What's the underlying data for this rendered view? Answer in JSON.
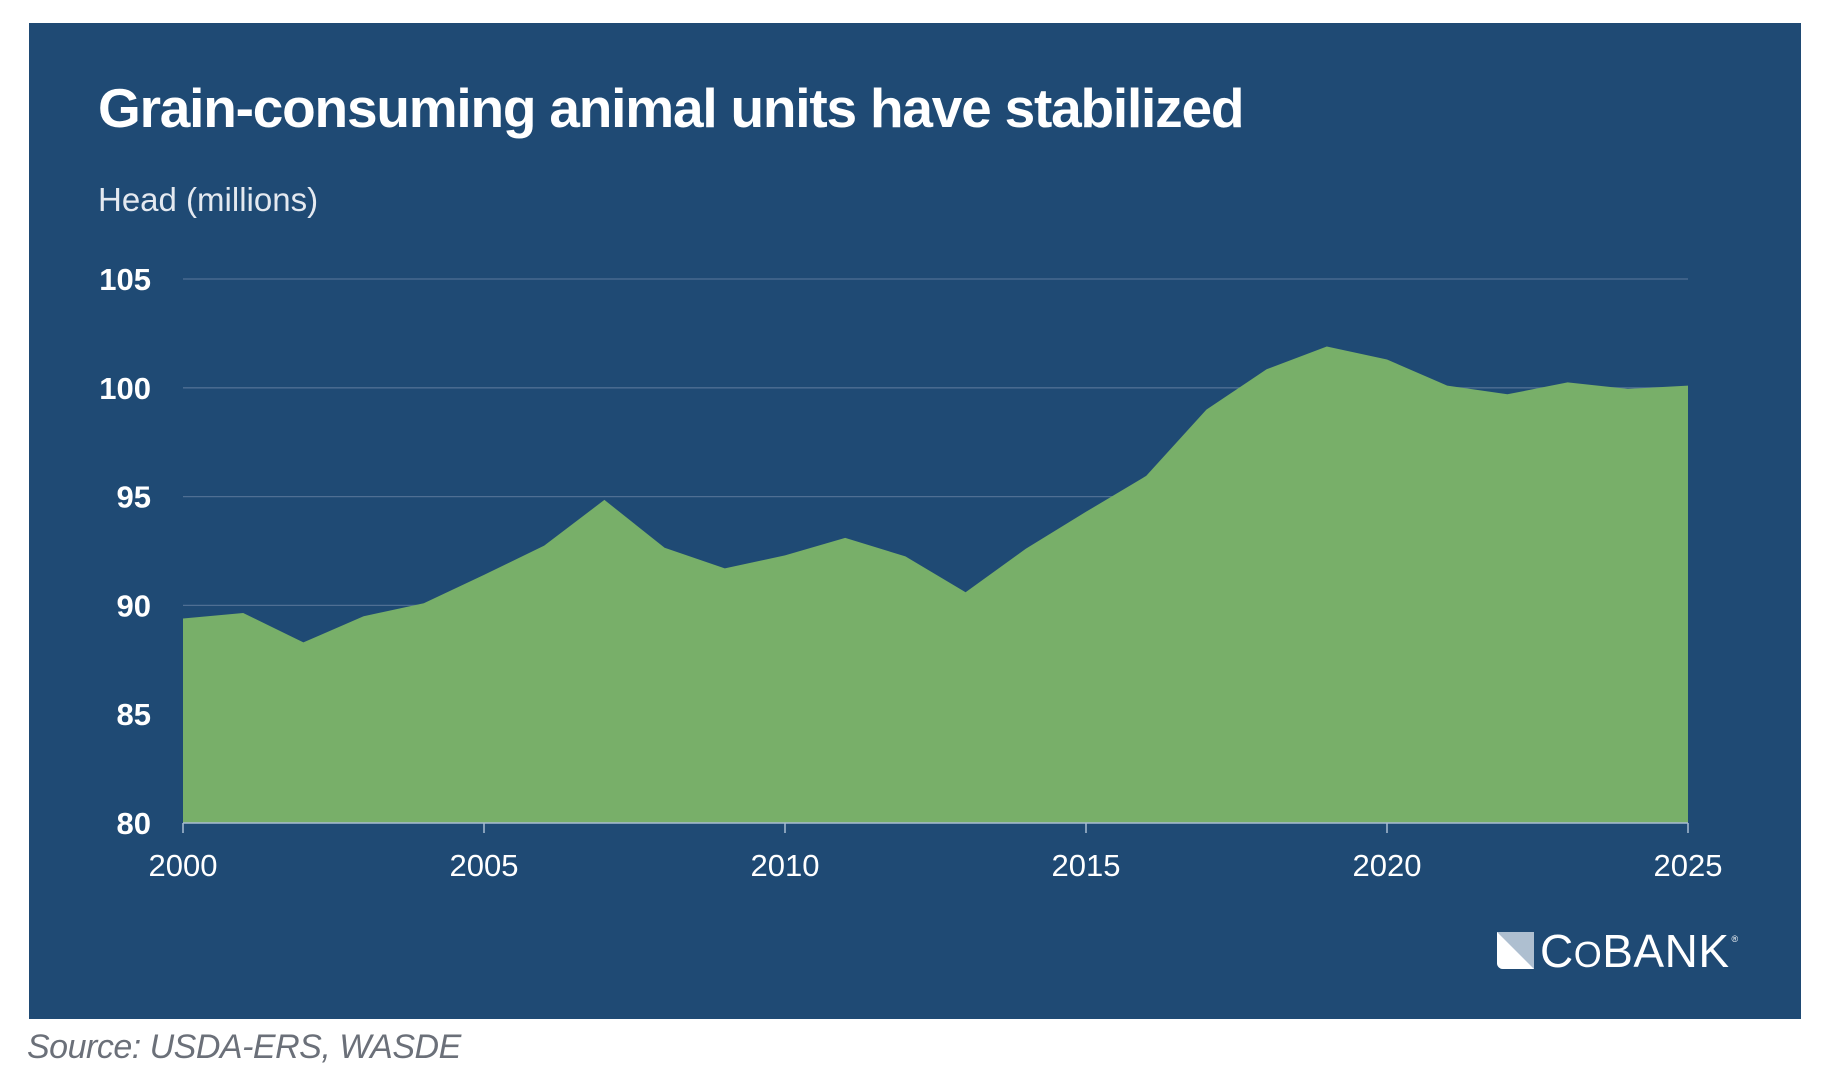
{
  "header": {
    "title": "Grain-consuming animal units have stabilized",
    "unit_label": "Head (millions)"
  },
  "footer": {
    "source": "Source: USDA-ERS, WASDE",
    "logo_text_c": "C",
    "logo_text_o": "O",
    "logo_text_rest": "BANK",
    "logo_registered": "®"
  },
  "colors": {
    "background": "#1f4a74",
    "area_fill": "#78af69",
    "gridline": "#4f6f93",
    "axis": "#a9bcd2",
    "text": "#ffffff",
    "source_text": "#6b7079"
  },
  "chart_data": {
    "type": "area",
    "title": "Grain-consuming animal units have stabilized",
    "xlabel": "",
    "ylabel": "Head (millions)",
    "x": [
      2000,
      2001,
      2002,
      2003,
      2004,
      2005,
      2006,
      2007,
      2008,
      2009,
      2010,
      2011,
      2012,
      2013,
      2014,
      2015,
      2016,
      2017,
      2018,
      2019,
      2020,
      2021,
      2022,
      2023,
      2024,
      2025
    ],
    "series": [
      {
        "name": "Grain-consuming animal units",
        "values": [
          89.4,
          89.65,
          88.3,
          89.5,
          90.1,
          91.4,
          92.75,
          94.85,
          92.65,
          91.7,
          92.3,
          93.1,
          92.25,
          90.6,
          92.6,
          94.3,
          95.95,
          99.0,
          100.85,
          101.9,
          101.3,
          100.1,
          99.7,
          100.25,
          99.95,
          100.1
        ]
      }
    ],
    "xlim": [
      2000,
      2025
    ],
    "ylim": [
      80,
      105
    ],
    "x_ticks": [
      "2000",
      "2005",
      "2010",
      "2015",
      "2020",
      "2025"
    ],
    "y_ticks": [
      "80",
      "85",
      "90",
      "95",
      "100",
      "105"
    ],
    "grid": "horizontal",
    "legend": "none",
    "source": "Source: USDA-ERS, WASDE"
  }
}
